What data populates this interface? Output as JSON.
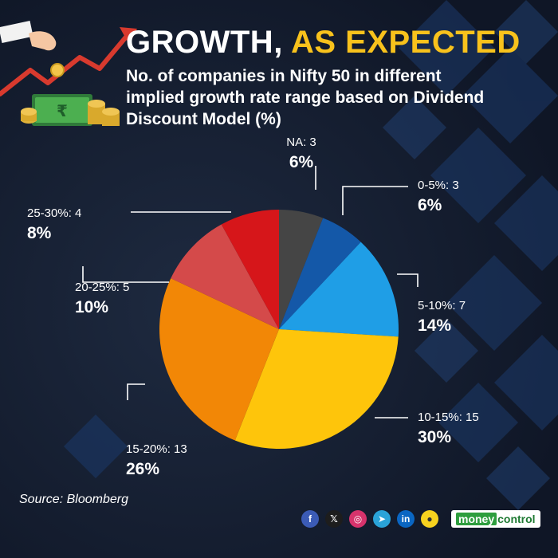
{
  "title": {
    "part1": "GROWTH,",
    "part2": "AS EXPECTED"
  },
  "subtitle": "No. of companies in Nifty 50 in different implied growth rate range based on Dividend Discount Model (%)",
  "source": "Source: Bloomberg",
  "brand": {
    "part1": "money",
    "part2": "control"
  },
  "colors": {
    "background": "#131c2e",
    "title_accent": "#f8c21c",
    "leader_line": "#ffffff"
  },
  "icons": [
    "facebook-icon",
    "x-icon",
    "instagram-icon",
    "telegram-icon",
    "linkedin-icon",
    "koo-icon"
  ],
  "chart_data": {
    "type": "pie",
    "categories": [
      "NA",
      "0-5%",
      "5-10%",
      "10-15%",
      "15-20%",
      "20-25%",
      "25-30%"
    ],
    "values": [
      3,
      3,
      7,
      15,
      13,
      5,
      4
    ],
    "percentages": [
      "6%",
      "6%",
      "14%",
      "30%",
      "26%",
      "10%",
      "8%"
    ],
    "labels": [
      "NA: 3",
      "0-5%: 3",
      "5-10%: 7",
      "10-15%: 15",
      "15-20%: 13",
      "20-25%: 5",
      "25-30%: 4"
    ],
    "colors": [
      "#454545",
      "#1458a8",
      "#1f9ee6",
      "#fec50b",
      "#f28706",
      "#d44a4a",
      "#d6161a"
    ],
    "start": "12 o'clock",
    "direction": "clockwise"
  }
}
